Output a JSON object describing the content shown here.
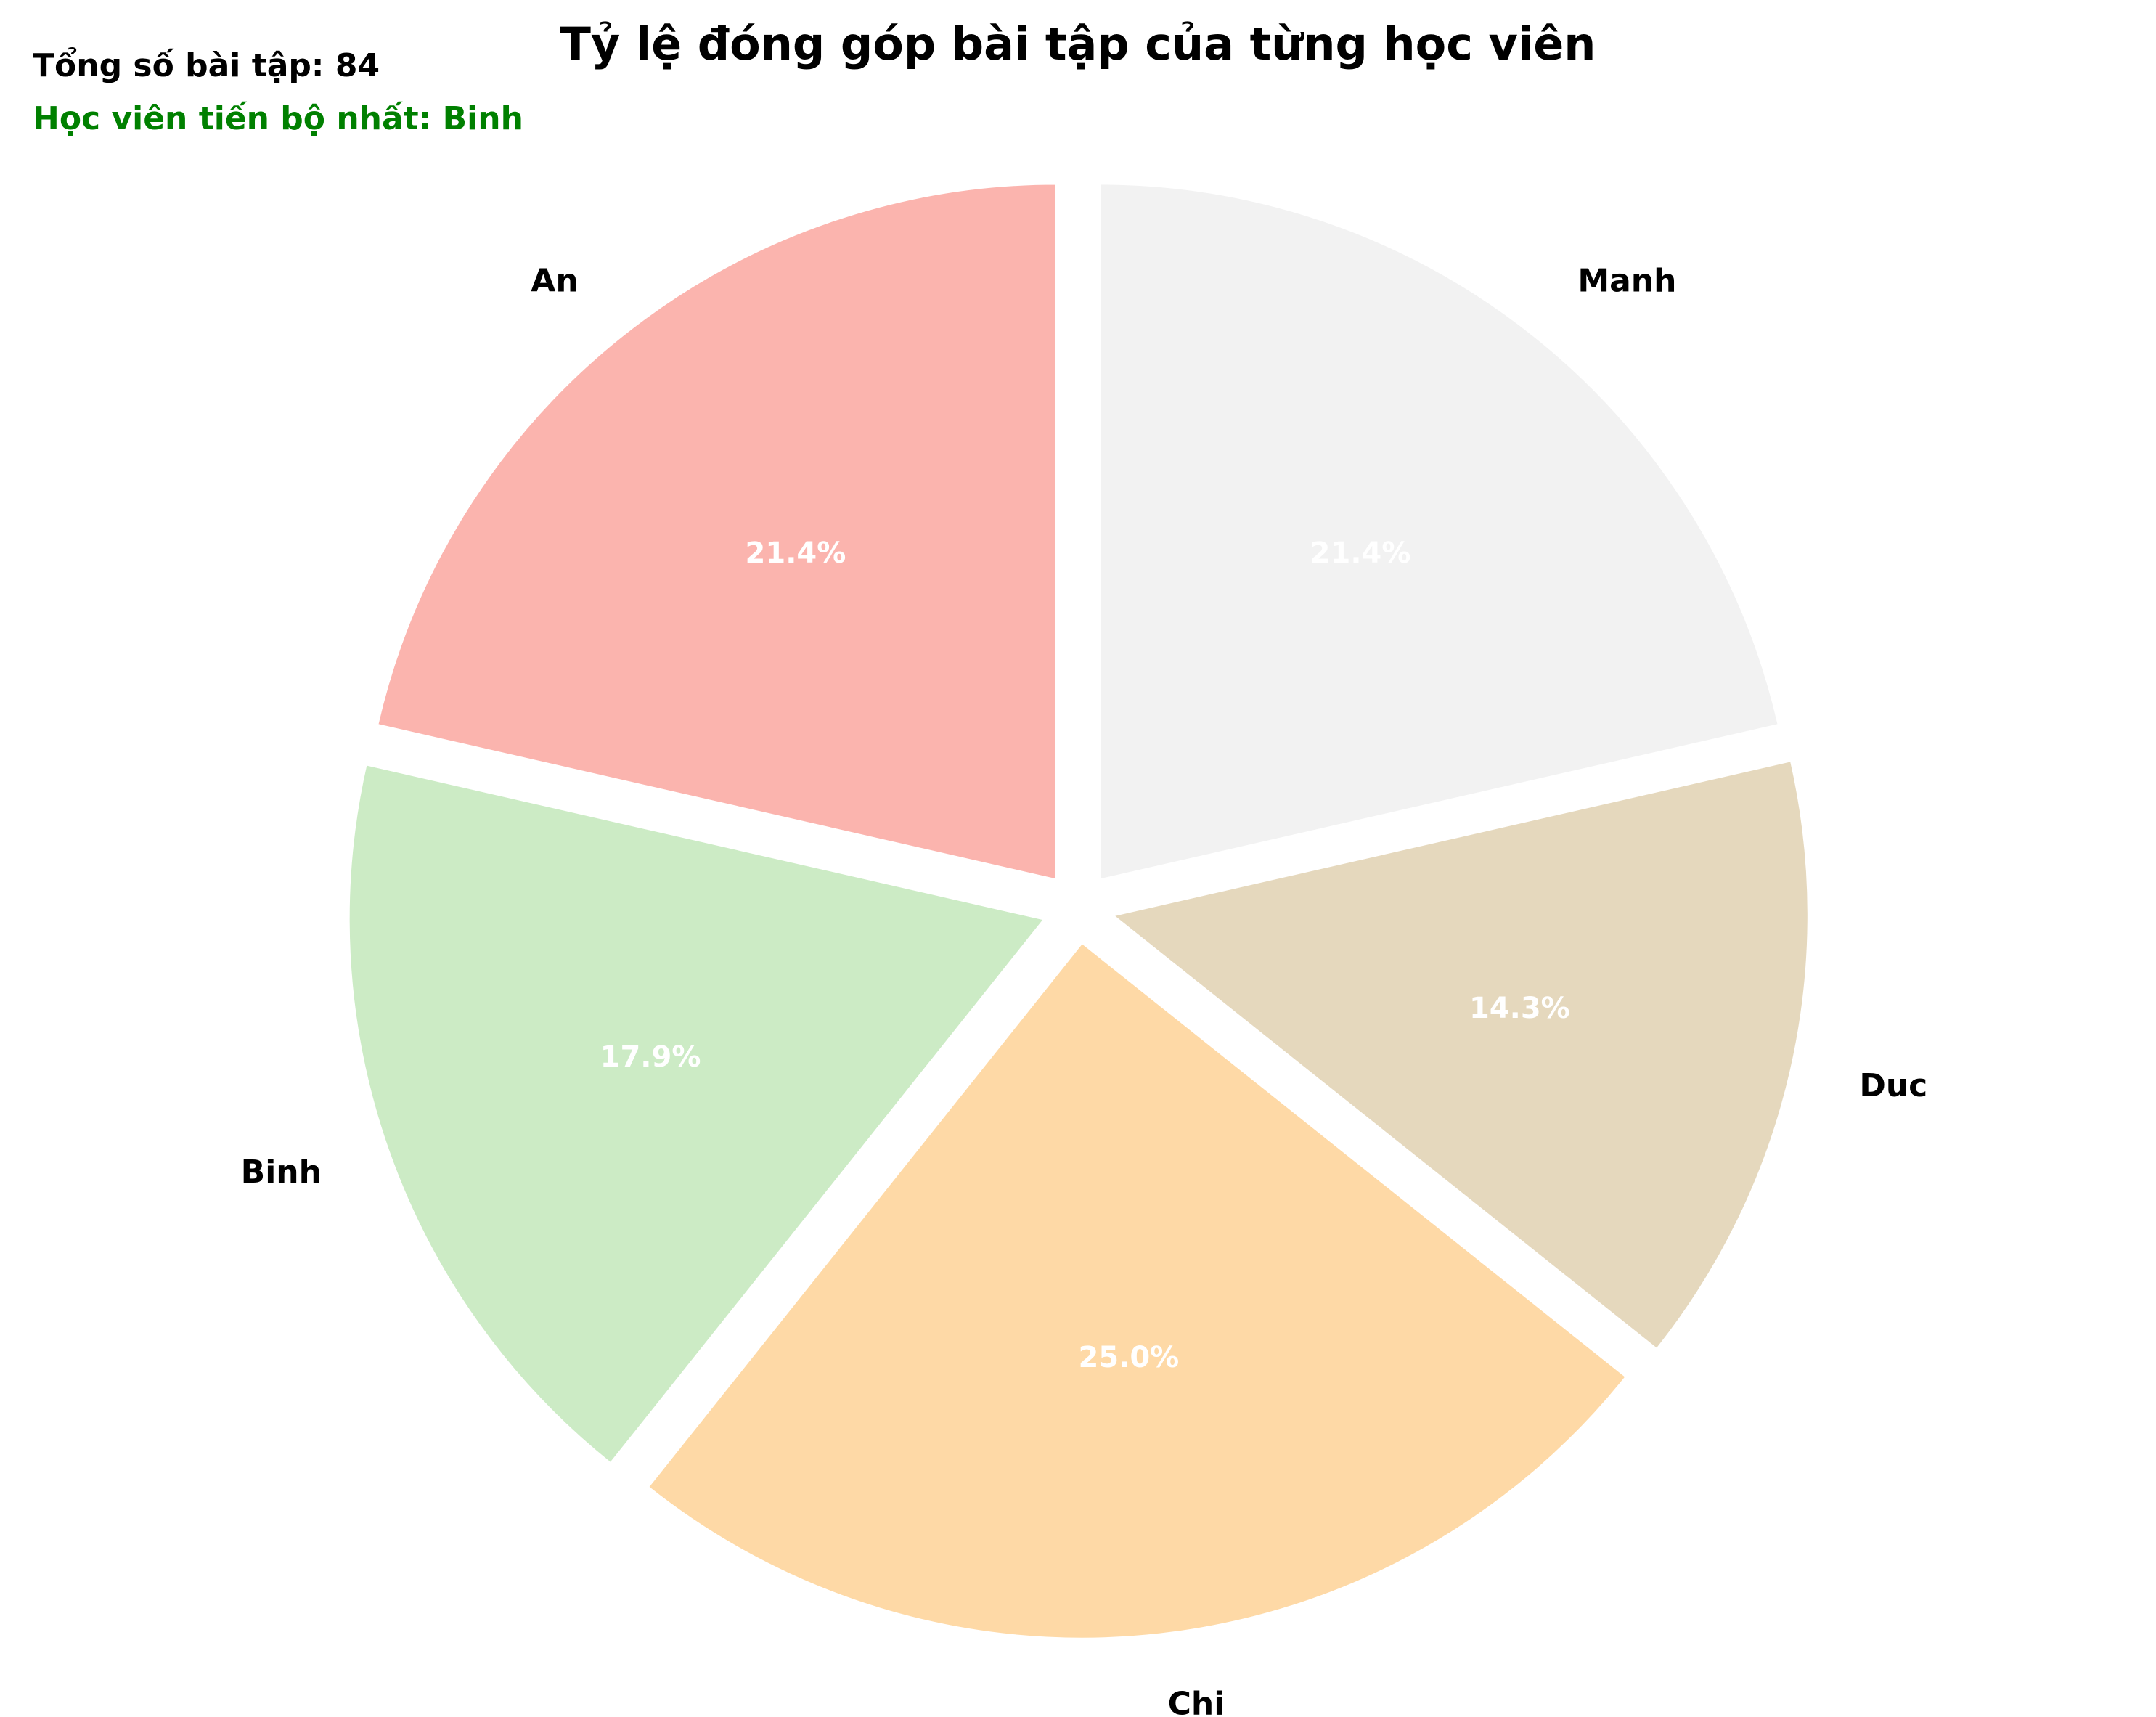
{
  "chart_data": {
    "type": "pie",
    "title": "Tỷ lệ đóng góp bài tập của từng học viên",
    "annotations": {
      "total": "Tổng số bài tập: 84",
      "best": "Học viên tiến bộ nhất: Binh"
    },
    "slices": [
      {
        "label": "An",
        "value": 18,
        "pct_label": "21.4%",
        "color": "#FBB4AE"
      },
      {
        "label": "Binh",
        "value": 15,
        "pct_label": "17.9%",
        "color": "#CCEBC5"
      },
      {
        "label": "Chi",
        "value": 21,
        "pct_label": "25.0%",
        "color": "#FED9A6"
      },
      {
        "label": "Duc",
        "value": 12,
        "pct_label": "14.3%",
        "color": "#E5D8BD"
      },
      {
        "label": "Manh",
        "value": 18,
        "pct_label": "21.4%",
        "color": "#F2F2F2"
      }
    ],
    "start_angle_deg": 90,
    "direction": "counterclockwise",
    "explode": 0.05,
    "colors": {
      "title": "#000000",
      "total_text": "#000000",
      "best_text": "#008000",
      "pct_text": "#ffffff",
      "label_text": "#000000",
      "edge": "#ffffff"
    }
  }
}
